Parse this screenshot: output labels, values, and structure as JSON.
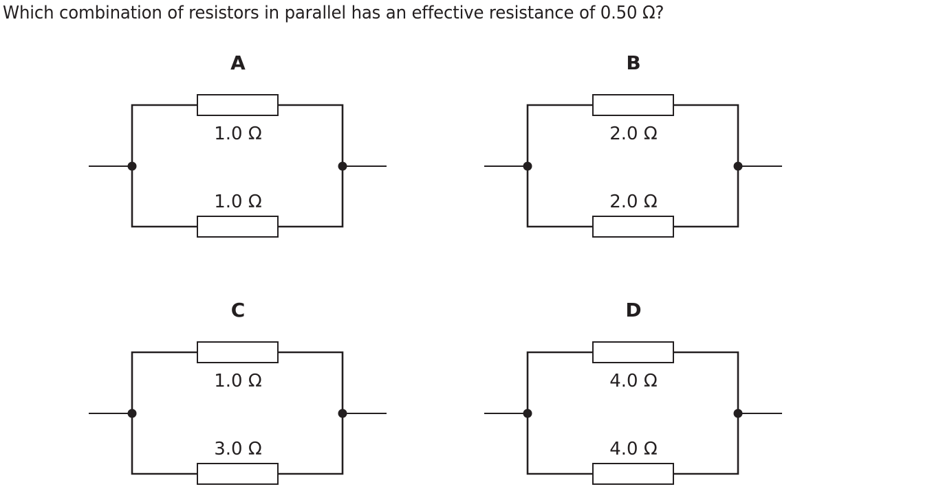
{
  "question": "Which combination of resistors in parallel has an effective resistance of 0.50 Ω?",
  "options": [
    {
      "letter": "A",
      "top_resistor": "1.0 Ω",
      "bottom_resistor": "1.0 Ω"
    },
    {
      "letter": "B",
      "top_resistor": "2.0 Ω",
      "bottom_resistor": "2.0 Ω"
    },
    {
      "letter": "C",
      "top_resistor": "1.0 Ω",
      "bottom_resistor": "3.0 Ω"
    },
    {
      "letter": "D",
      "top_resistor": "4.0 Ω",
      "bottom_resistor": "4.0 Ω"
    }
  ]
}
